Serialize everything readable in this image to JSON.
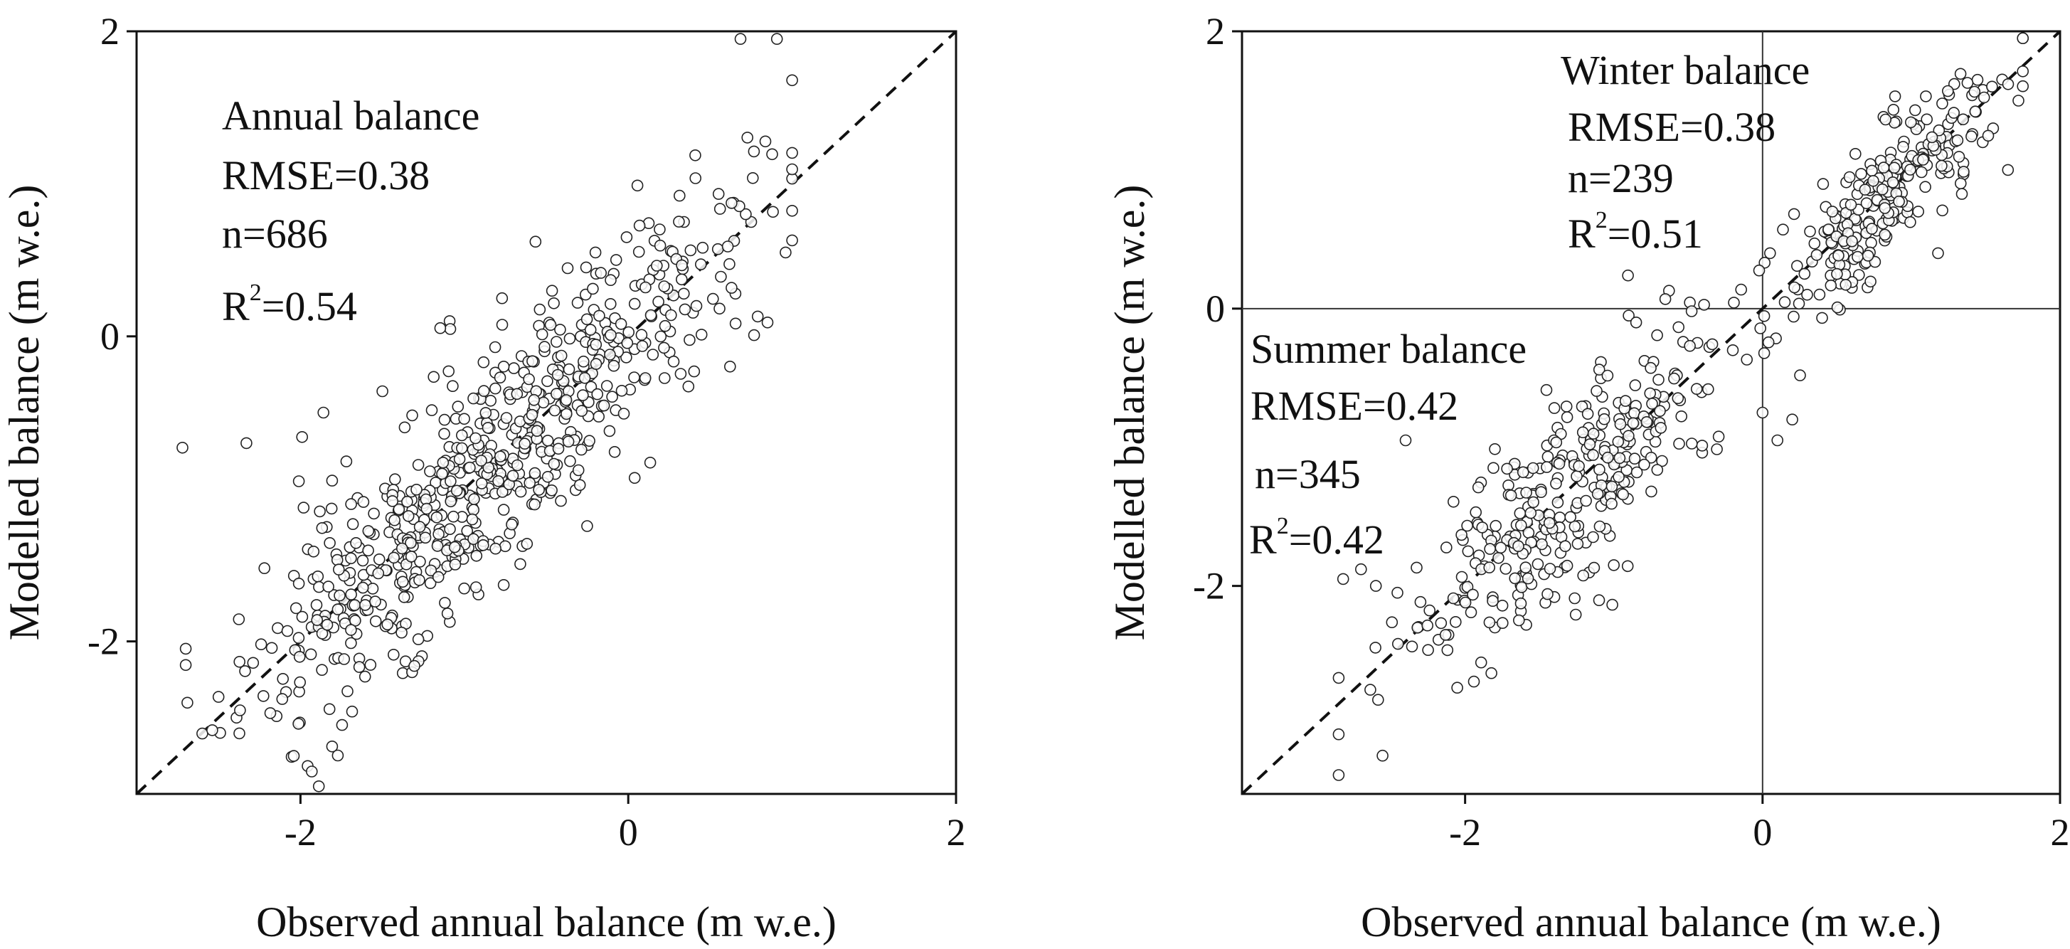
{
  "chart_data": [
    {
      "type": "scatter",
      "panel": "left",
      "xlabel": "Observed annual balance (m w.e.)",
      "ylabel": "Modelled balance (m w.e.)",
      "xlim": [
        -3,
        2
      ],
      "ylim": [
        -3,
        2
      ],
      "xticks": [
        -2,
        0,
        2
      ],
      "yticks": [
        -2,
        0,
        2
      ],
      "xtick_labels": [
        "-2",
        "0",
        "2"
      ],
      "ytick_labels": [
        "-2",
        "0",
        "2"
      ],
      "grid": false,
      "reference_line": "1:1 dashed",
      "zero_lines": false,
      "annotations": [
        {
          "title": "Annual balance",
          "rmse": "RMSE=0.38",
          "n": "n=686",
          "r2_prefix": "R",
          "r2_sup": "2",
          "r2_value": "=0.54"
        }
      ],
      "series": [
        {
          "name": "Annual balance",
          "marker": "open-circle",
          "count": 686,
          "rmse": 0.38,
          "r2": 0.54,
          "spread": 0.38,
          "x_range": [
            -2.7,
            1.0
          ],
          "sample_points": [
            [
              -2.72,
              -0.73
            ],
            [
              -2.33,
              -0.7
            ],
            [
              -2.22,
              -1.52
            ],
            [
              -2.04,
              -1.57
            ],
            [
              -2.01,
              -0.95
            ],
            [
              -1.99,
              -0.66
            ],
            [
              -1.86,
              -0.5
            ],
            [
              -1.84,
              -1.25
            ],
            [
              -1.72,
              -0.82
            ],
            [
              -1.7,
              -1.6
            ],
            [
              -1.62,
              -1.47
            ],
            [
              -1.5,
              -0.36
            ],
            [
              -1.47,
              -1.05
            ],
            [
              -1.44,
              -1.83
            ],
            [
              -1.38,
              -1.9
            ],
            [
              -1.09,
              0.1
            ],
            [
              -0.77,
              0.25
            ],
            [
              -0.76,
              -1.63
            ],
            [
              -0.2,
              0.55
            ],
            [
              -0.01,
              0.65
            ],
            [
              0.26,
              0.56
            ],
            [
              0.34,
              0.75
            ],
            [
              0.75,
              0.75
            ],
            [
              0.79,
              0.13
            ],
            [
              0.96,
              0.55
            ],
            [
              -2.49,
              -2.6
            ]
          ]
        }
      ]
    },
    {
      "type": "scatter",
      "panel": "right",
      "xlabel": "Observed annual balance (m w.e.)",
      "ylabel": "Modelled balance (m w.e.)",
      "xlim": [
        -3.5,
        2
      ],
      "ylim": [
        -3.5,
        2
      ],
      "xticks": [
        -2,
        0,
        2
      ],
      "yticks": [
        -2,
        0,
        2
      ],
      "xtick_labels": [
        "-2",
        "0",
        "2"
      ],
      "ytick_labels": [
        "-2",
        "0",
        "2"
      ],
      "grid": false,
      "reference_line": "1:1 dashed",
      "zero_lines": true,
      "annotations": [
        {
          "title": "Winter balance",
          "rmse": "RMSE=0.38",
          "n": "n=239",
          "r2_prefix": "R",
          "r2_sup": "2",
          "r2_value": "=0.51"
        },
        {
          "title": "Summer balance",
          "rmse": "RMSE=0.42",
          "n": "n=345",
          "r2_prefix": "R",
          "r2_sup": "2",
          "r2_value": "=0.42"
        }
      ],
      "series": [
        {
          "name": "Winter balance",
          "marker": "open-circle",
          "count": 239,
          "rmse": 0.38,
          "r2": 0.51,
          "spread": 0.22,
          "x_range": [
            0.0,
            1.75
          ],
          "sample_points": [
            [
              0.9,
              1.35
            ],
            [
              1.72,
              1.5
            ],
            [
              1.55,
              1.3
            ],
            [
              1.48,
              1.2
            ],
            [
              1.35,
              1.05
            ],
            [
              1.65,
              1.0
            ],
            [
              1.18,
              0.4
            ],
            [
              0.6,
              0.15
            ],
            [
              0.3,
              0.1
            ],
            [
              0.05,
              0.4
            ]
          ]
        },
        {
          "name": "Summer balance",
          "marker": "open-circle",
          "count": 345,
          "rmse": 0.42,
          "r2": 0.42,
          "spread": 0.36,
          "x_range": [
            -2.85,
            0.3
          ],
          "sample_points": [
            [
              -2.82,
              -1.95
            ],
            [
              -2.7,
              -1.88
            ],
            [
              -2.6,
              -2.0
            ],
            [
              -2.4,
              -0.95
            ],
            [
              -2.05,
              -2.1
            ],
            [
              -1.98,
              -1.75
            ],
            [
              -1.8,
              -2.3
            ],
            [
              -1.4,
              -2.08
            ],
            [
              -1.0,
              -1.85
            ],
            [
              -0.9,
              -0.05
            ],
            [
              -0.85,
              -0.1
            ],
            [
              0.1,
              -0.95
            ],
            [
              0.2,
              -0.8
            ],
            [
              0.0,
              -0.75
            ],
            [
              -0.2,
              -0.3
            ]
          ]
        }
      ]
    }
  ]
}
